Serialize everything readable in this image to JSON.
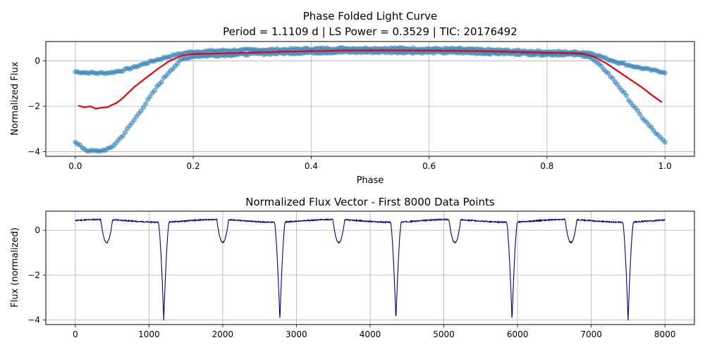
{
  "chart_data": [
    {
      "type": "scatter",
      "title": "Phase Folded Light Curve",
      "subtitle": "Period = 1.1109 d | LS Power = 0.3529 | TIC: 20176492",
      "xlabel": "Phase",
      "ylabel": "Normalized Flux",
      "xlim": [
        -0.05,
        1.05
      ],
      "ylim": [
        -4.2,
        0.85
      ],
      "xticks": [
        0.0,
        0.2,
        0.4,
        0.6,
        0.8,
        1.0
      ],
      "xtick_labels": [
        "0.0",
        "0.2",
        "0.4",
        "0.6",
        "0.8",
        "1.0"
      ],
      "yticks": [
        0,
        -2,
        -4
      ],
      "ytick_labels": [
        "0",
        "−2",
        "−4"
      ],
      "grid": true,
      "colors": {
        "scatter": "#1f77b4",
        "line": "#e8000b"
      },
      "series": [
        {
          "kind": "scatter-band",
          "x": [
            0.0,
            0.02,
            0.04,
            0.06,
            0.08,
            0.1,
            0.12,
            0.14,
            0.16,
            0.18,
            0.2,
            0.25,
            0.3,
            0.35,
            0.4,
            0.45,
            0.5,
            0.55,
            0.6,
            0.65,
            0.7,
            0.75,
            0.8,
            0.84,
            0.86,
            0.87,
            0.88,
            0.9,
            0.92,
            0.94,
            0.96,
            0.98,
            1.0
          ],
          "upper": [
            -0.48,
            -0.52,
            -0.54,
            -0.52,
            -0.42,
            -0.28,
            -0.1,
            0.06,
            0.2,
            0.32,
            0.4,
            0.45,
            0.48,
            0.5,
            0.53,
            0.55,
            0.55,
            0.55,
            0.53,
            0.52,
            0.48,
            0.44,
            0.4,
            0.38,
            0.37,
            0.36,
            0.3,
            0.1,
            -0.06,
            -0.2,
            -0.32,
            -0.42,
            -0.5
          ],
          "lower": [
            -3.6,
            -3.95,
            -3.98,
            -3.85,
            -3.3,
            -2.6,
            -1.85,
            -1.1,
            -0.45,
            0.05,
            0.2,
            0.25,
            0.3,
            0.33,
            0.36,
            0.38,
            0.38,
            0.38,
            0.37,
            0.36,
            0.33,
            0.31,
            0.28,
            0.27,
            0.24,
            0.2,
            0.02,
            -0.45,
            -1.05,
            -1.75,
            -2.45,
            -3.05,
            -3.6
          ]
        },
        {
          "kind": "line",
          "x": [
            0.005,
            0.015,
            0.025,
            0.035,
            0.045,
            0.055,
            0.06,
            0.07,
            0.08,
            0.09,
            0.1,
            0.12,
            0.14,
            0.16,
            0.18,
            0.2,
            0.25,
            0.3,
            0.35,
            0.4,
            0.45,
            0.5,
            0.55,
            0.6,
            0.65,
            0.7,
            0.75,
            0.8,
            0.84,
            0.86,
            0.88,
            0.9,
            0.92,
            0.94,
            0.96,
            0.98,
            0.995
          ],
          "y": [
            -1.97,
            -2.04,
            -2.0,
            -2.1,
            -2.06,
            -2.04,
            -1.97,
            -1.85,
            -1.65,
            -1.4,
            -1.15,
            -0.75,
            -0.35,
            0.0,
            0.22,
            0.3,
            0.33,
            0.36,
            0.4,
            0.43,
            0.45,
            0.46,
            0.46,
            0.45,
            0.44,
            0.42,
            0.39,
            0.36,
            0.34,
            0.32,
            0.18,
            -0.1,
            -0.45,
            -0.8,
            -1.15,
            -1.55,
            -1.82
          ]
        }
      ]
    },
    {
      "type": "line",
      "title": "Normalized Flux Vector - First 8000 Data Points",
      "xlabel": "",
      "ylabel": "Flux (normalized)",
      "xlim": [
        -400,
        8400
      ],
      "ylim": [
        -4.2,
        0.85
      ],
      "xticks": [
        0,
        1000,
        2000,
        3000,
        4000,
        5000,
        6000,
        7000,
        8000
      ],
      "xtick_labels": [
        "0",
        "1000",
        "2000",
        "3000",
        "4000",
        "5000",
        "6000",
        "7000",
        "8000"
      ],
      "yticks": [
        0,
        -2,
        -4
      ],
      "ytick_labels": [
        "0",
        "−2",
        "−4"
      ],
      "grid": true,
      "colors": {
        "line": "#000080"
      },
      "period_points": 1575,
      "secondary_eclipse": {
        "x0": 425,
        "depth": -0.55,
        "half_width": 80
      },
      "primary_eclipse": {
        "x0": 1200,
        "depth": -4.0,
        "half_width": 75
      },
      "samples": {
        "x": [
          0,
          100,
          200,
          300,
          350,
          425,
          500,
          550,
          650,
          800,
          950,
          1100,
          1150,
          1200,
          1250,
          1300,
          1400,
          1600,
          1800,
          1900,
          2000,
          2100,
          2200,
          2400,
          2600,
          2700,
          2775,
          2850,
          3000,
          3200,
          3400,
          3500,
          3575,
          3650,
          3800,
          4000,
          4200,
          4275,
          4350,
          4500,
          4700,
          4900,
          5000,
          5075,
          5150,
          5300,
          5500,
          5700,
          5850,
          5925,
          6000,
          6200,
          6400,
          6600,
          6650,
          6700,
          6850,
          7000,
          7200,
          7400,
          7500,
          7575,
          7700,
          7900,
          8000
        ],
        "y": [
          0.48,
          0.48,
          0.46,
          0.35,
          0.0,
          -0.55,
          0.0,
          0.45,
          0.55,
          0.6,
          0.55,
          0.3,
          -1.5,
          -4.0,
          -1.5,
          0.25,
          0.35,
          0.45,
          0.45,
          0.2,
          -0.55,
          0.0,
          0.45,
          0.6,
          0.5,
          0.3,
          -4.0,
          0.3,
          0.35,
          0.48,
          0.4,
          0.0,
          -0.55,
          0.0,
          0.55,
          0.6,
          0.5,
          0.3,
          -4.0,
          0.3,
          0.45,
          0.45,
          0.0,
          -0.55,
          0.0,
          0.55,
          0.6,
          0.5,
          -1.5,
          -4.0,
          0.3,
          0.4,
          0.45,
          0.1,
          -0.55,
          0.1,
          0.55,
          0.6,
          0.5,
          0.3,
          -4.0,
          0.3,
          0.4,
          0.45,
          0.45
        ]
      }
    }
  ]
}
